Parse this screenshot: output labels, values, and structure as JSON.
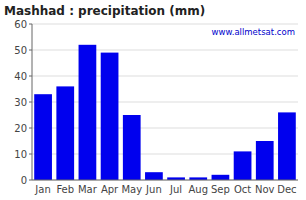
{
  "chart_data": {
    "type": "bar",
    "title": "Mashhad : precipitation (mm)",
    "categories": [
      "Jan",
      "Feb",
      "Mar",
      "Apr",
      "May",
      "Jun",
      "Jul",
      "Aug",
      "Sep",
      "Oct",
      "Nov",
      "Dec"
    ],
    "values": [
      33,
      36,
      52,
      49,
      25,
      3,
      1,
      1,
      2,
      11,
      15,
      26
    ],
    "color": "#0000ee",
    "ylim": [
      0,
      60
    ],
    "yticks": [
      0,
      10,
      20,
      30,
      40,
      50,
      60
    ],
    "grid": true,
    "annotations": [
      "www.allmetsat.com"
    ]
  }
}
